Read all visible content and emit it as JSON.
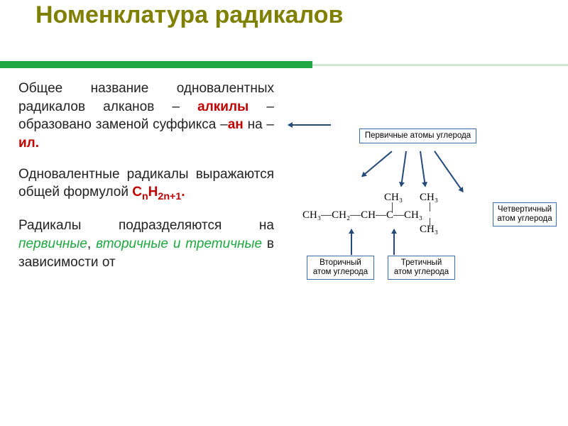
{
  "title": {
    "text": "Номенклатура радикалов",
    "color": "#7f7f00",
    "fontsize": 34
  },
  "accent_bar": {
    "color": "#1ea83f",
    "light": "#d0e8d4"
  },
  "paragraphs": {
    "p1_start": "Общее название одновалентных радикалов алканов – ",
    "p1_alkyl": "алкилы",
    "p1_mid": " – образовано заменой суффикса –",
    "p1_an": "ан",
    "p1_na": " на – ",
    "p1_il": "ил.",
    "p2_start": "Одновалентные радикалы выражаются общей формулой ",
    "p2_formula_C": "C",
    "p2_formula_n": "n",
    "p2_formula_H": "H",
    "p2_formula_2n1": "2n+1",
    "p2_formula_dot": ".",
    "p3_start": "Радикалы подразделяются на ",
    "p3_primary": "первичные",
    "p3_secondary": "вторичные",
    "p3_tertiary": "третичные",
    "p3_sep": ", ",
    "p3_and": " и ",
    "p3_end": " в зависимости от"
  },
  "diagram": {
    "chain": "CH₃—CH₂—CH—C—CH₃",
    "ch3": "CH₃",
    "labels": {
      "primary": "Первичные атомы углерода",
      "secondary": "Вторичный атом углерода",
      "tertiary": "Третичный атом углерода",
      "quaternary": "Четвертичный атом углерода"
    },
    "box_border": "#3a6fb0",
    "arrow_color": "#254a7a"
  },
  "emphasis": {
    "red": "#c00000",
    "green": "#1ea83f"
  }
}
